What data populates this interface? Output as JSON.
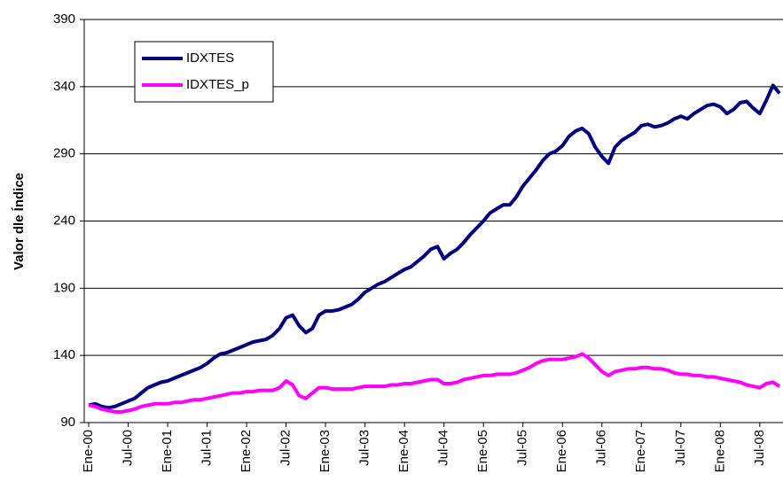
{
  "chart_data": {
    "type": "line",
    "y_label": "Valor dle Índice",
    "categories": [
      "Ene-00",
      null,
      null,
      null,
      null,
      null,
      "Jul-00",
      null,
      null,
      null,
      null,
      null,
      "Ene-01",
      null,
      null,
      null,
      null,
      null,
      "Jul-01",
      null,
      null,
      null,
      null,
      null,
      "Ene-02",
      null,
      null,
      null,
      null,
      null,
      "Jul-02",
      null,
      null,
      null,
      null,
      null,
      "Ene-03",
      null,
      null,
      null,
      null,
      null,
      "Jul-03",
      null,
      null,
      null,
      null,
      null,
      "Ene-04",
      null,
      null,
      null,
      null,
      null,
      "Jul-04",
      null,
      null,
      null,
      null,
      null,
      "Ene-05",
      null,
      null,
      null,
      null,
      null,
      "Jul-05",
      null,
      null,
      null,
      null,
      null,
      "Ene-06",
      null,
      null,
      null,
      null,
      null,
      "Jul-06",
      null,
      null,
      null,
      null,
      null,
      "Ene-07",
      null,
      null,
      null,
      null,
      null,
      "Jul-07",
      null,
      null,
      null,
      null,
      null,
      "Ene-08",
      null,
      null,
      null,
      null,
      null,
      "Jul-08",
      null,
      null,
      null
    ],
    "series": [
      {
        "name": "IDXTES",
        "color": "#000080",
        "values": [
          103,
          104,
          102,
          101,
          102,
          104,
          106,
          108,
          112,
          116,
          118,
          120,
          121,
          123,
          125,
          127,
          129,
          131,
          134,
          138,
          141,
          142,
          144,
          146,
          148,
          150,
          151,
          152,
          155,
          160,
          168,
          170,
          162,
          157,
          160,
          170,
          173,
          173,
          174,
          176,
          178,
          182,
          187,
          190,
          193,
          195,
          198,
          201,
          204,
          206,
          210,
          214,
          219,
          221,
          212,
          216,
          219,
          224,
          230,
          235,
          240,
          246,
          249,
          252,
          252,
          258,
          266,
          272,
          278,
          285,
          290,
          292,
          296,
          303,
          307,
          309,
          305,
          295,
          288,
          283,
          295,
          300,
          303,
          306,
          311,
          312,
          310,
          311,
          313,
          316,
          318,
          316,
          320,
          323,
          326,
          327,
          325,
          320,
          323,
          328,
          329,
          324,
          320,
          330,
          341,
          335
        ]
      },
      {
        "name": "IDXTES_p",
        "color": "#ff00ff",
        "values": [
          103,
          102,
          100,
          99,
          98,
          98,
          99,
          100,
          102,
          103,
          104,
          104,
          104,
          105,
          105,
          106,
          107,
          107,
          108,
          109,
          110,
          111,
          112,
          112,
          113,
          113,
          114,
          114,
          114,
          116,
          121,
          118,
          110,
          108,
          112,
          116,
          116,
          115,
          115,
          115,
          115,
          116,
          117,
          117,
          117,
          117,
          118,
          118,
          119,
          119,
          120,
          121,
          122,
          122,
          119,
          119,
          120,
          122,
          123,
          124,
          125,
          125,
          126,
          126,
          126,
          127,
          129,
          131,
          134,
          136,
          137,
          137,
          137,
          138,
          139,
          141,
          138,
          133,
          128,
          125,
          128,
          129,
          130,
          130,
          131,
          131,
          130,
          130,
          129,
          127,
          126,
          126,
          125,
          125,
          124,
          124,
          123,
          122,
          121,
          120,
          118,
          117,
          116,
          119,
          120,
          117
        ]
      }
    ],
    "ylim": [
      90,
      390
    ],
    "yticks": [
      90,
      140,
      190,
      240,
      290,
      340,
      390
    ],
    "grid": true,
    "legend": "upper left"
  }
}
